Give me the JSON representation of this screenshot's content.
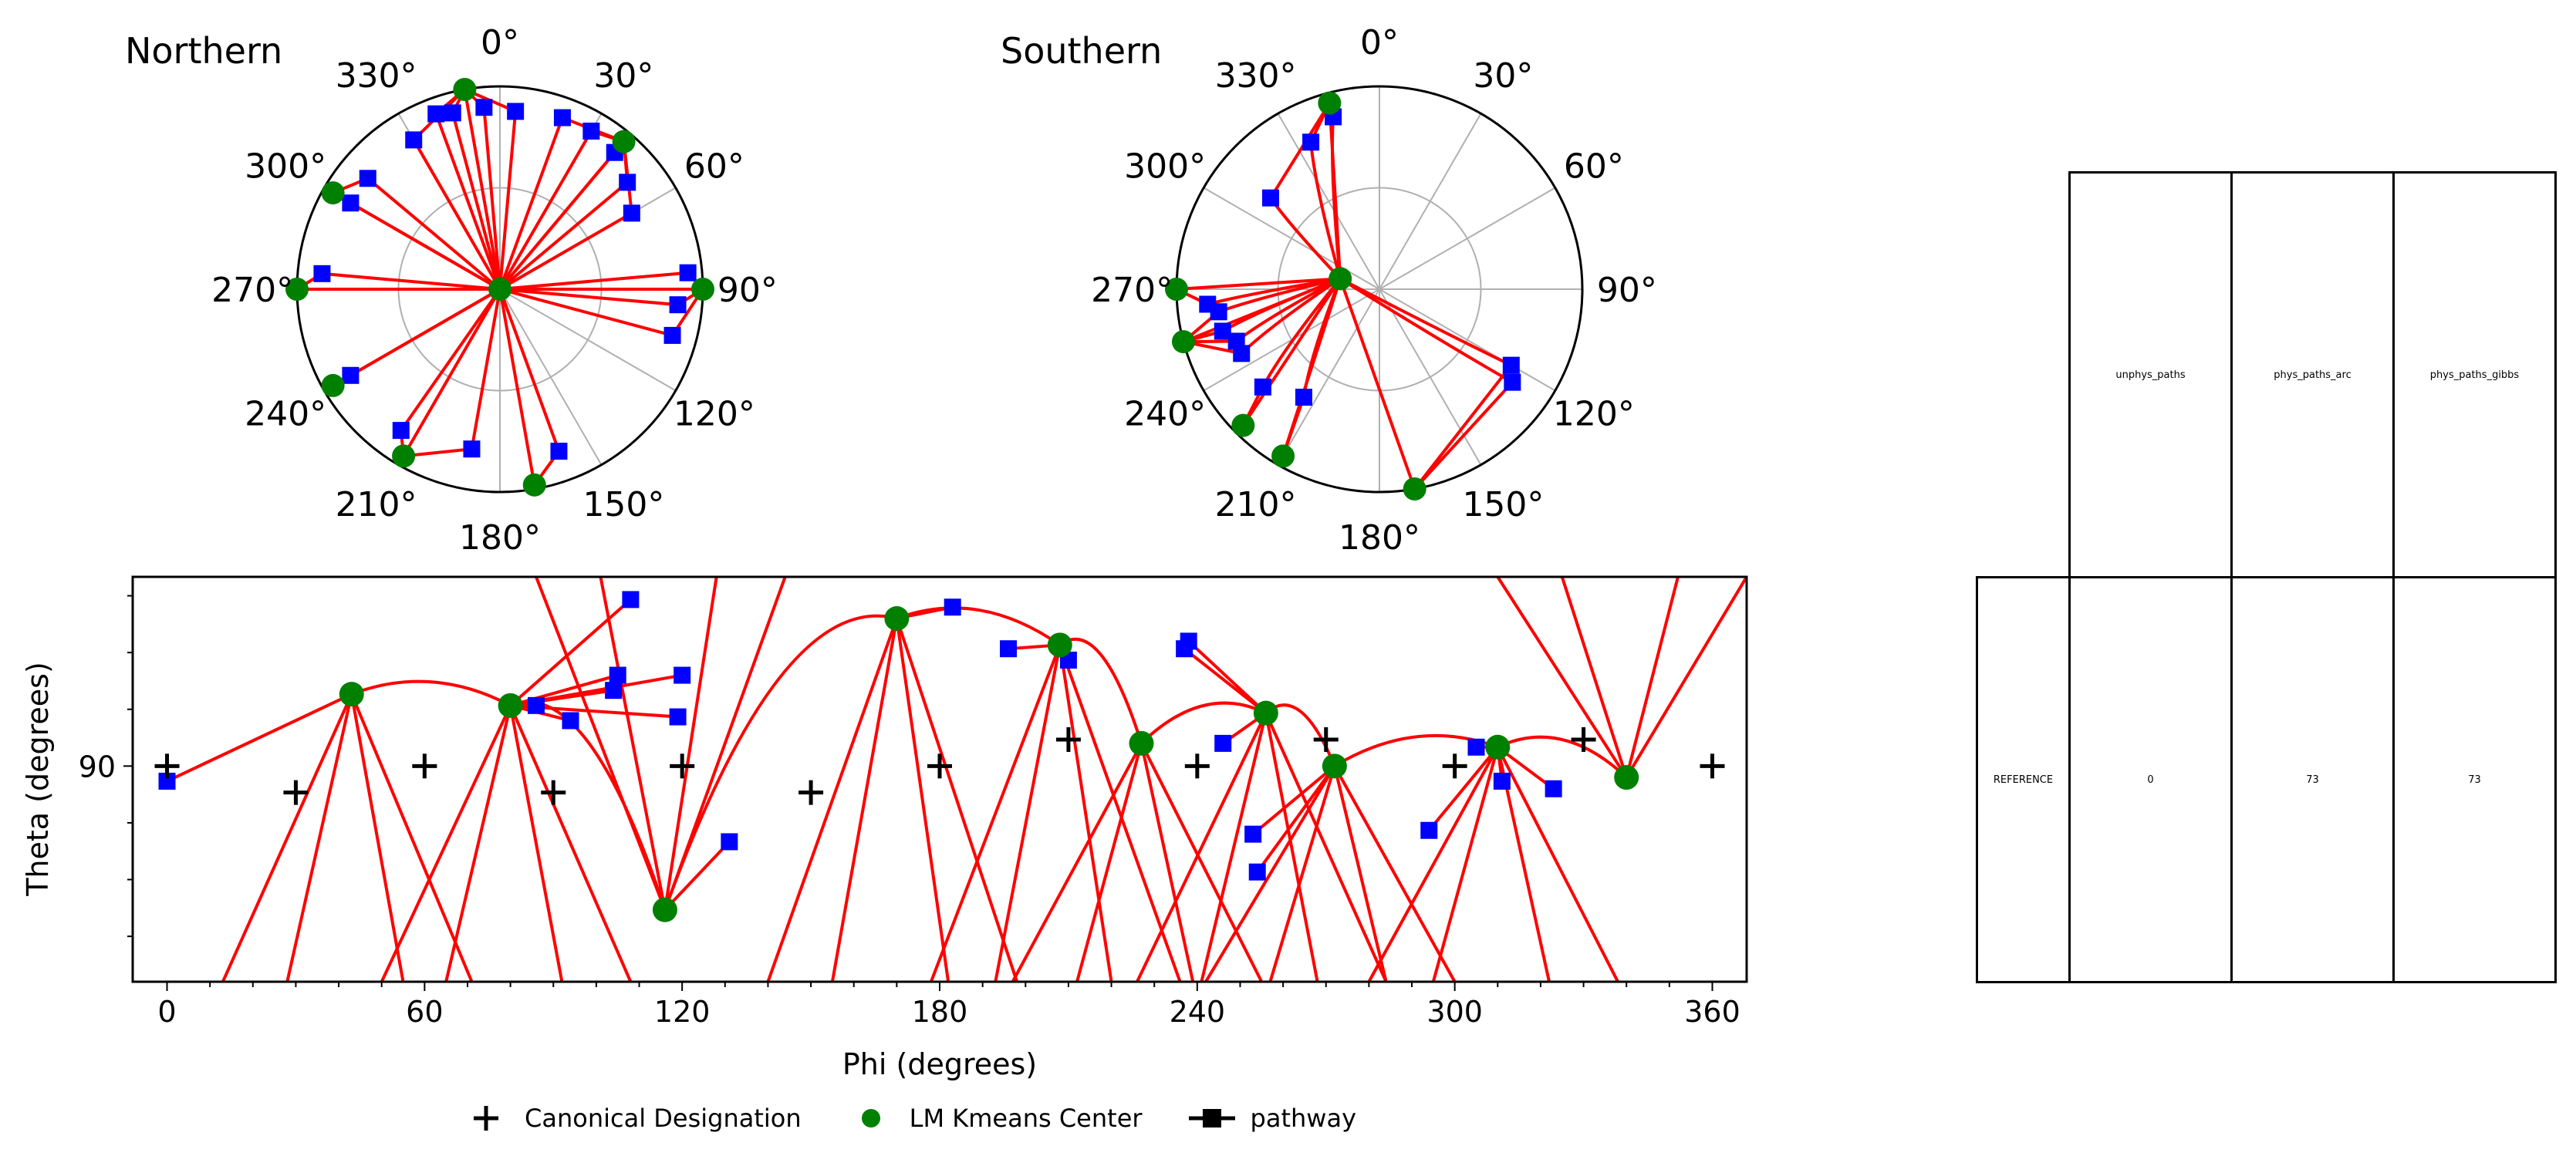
{
  "polar_northern": {
    "title": "Northern"
  },
  "polar_southern": {
    "title": "Southern"
  },
  "angle_ticks": [
    "0°",
    "30°",
    "60°",
    "90°",
    "120°",
    "150°",
    "180°",
    "210°",
    "240°",
    "270°",
    "300°",
    "330°"
  ],
  "legend": {
    "items": [
      {
        "label": "Canonical Designation",
        "marker": "plus",
        "color": "#000000"
      },
      {
        "label": "LM Kmeans Center",
        "marker": "circle",
        "color": "#008000"
      },
      {
        "label": "pathway",
        "marker": "square-line",
        "color": "#000000"
      }
    ]
  },
  "table": {
    "columns": [
      "unphys_paths",
      "phys_paths_arc",
      "phys_paths_gibbs"
    ],
    "rows": [
      {
        "label": "REFERENCE",
        "values": [
          "0",
          "73",
          "73"
        ]
      }
    ]
  },
  "colors": {
    "path": "#ff0000",
    "center": "#008000",
    "pathway_marker": "#0000ff",
    "canonical": "#000000"
  },
  "chart_data": [
    {
      "type": "scatter",
      "title": "Northern",
      "projection": "polar",
      "angle_ticks_deg": [
        0,
        30,
        60,
        90,
        120,
        150,
        180,
        210,
        240,
        270,
        300,
        330
      ],
      "centers": [
        {
          "phi": 0,
          "r": 0
        },
        {
          "phi": 90,
          "r": 1.0
        },
        {
          "phi": 270,
          "r": 1.0
        },
        {
          "phi": 300,
          "r": 0.95
        },
        {
          "phi": 240,
          "r": 0.95
        },
        {
          "phi": 210,
          "r": 0.95
        },
        {
          "phi": 170,
          "r": 0.98
        },
        {
          "phi": 40,
          "r": 0.95
        },
        {
          "phi": 350,
          "r": 1.0
        }
      ],
      "pathway_points": [
        {
          "phi": 345,
          "r": 0.9
        },
        {
          "phi": 340,
          "r": 0.92
        },
        {
          "phi": 355,
          "r": 0.9
        },
        {
          "phi": 5,
          "r": 0.88
        },
        {
          "phi": 20,
          "r": 0.9
        },
        {
          "phi": 30,
          "r": 0.9
        },
        {
          "phi": 40,
          "r": 0.88
        },
        {
          "phi": 50,
          "r": 0.82
        },
        {
          "phi": 60,
          "r": 0.75
        },
        {
          "phi": 85,
          "r": 0.93
        },
        {
          "phi": 95,
          "r": 0.88
        },
        {
          "phi": 105,
          "r": 0.88
        },
        {
          "phi": 160,
          "r": 0.85
        },
        {
          "phi": 190,
          "r": 0.8
        },
        {
          "phi": 215,
          "r": 0.85
        },
        {
          "phi": 240,
          "r": 0.85
        },
        {
          "phi": 275,
          "r": 0.88
        },
        {
          "phi": 300,
          "r": 0.85
        },
        {
          "phi": 310,
          "r": 0.85
        },
        {
          "phi": 330,
          "r": 0.85
        }
      ]
    },
    {
      "type": "scatter",
      "title": "Southern",
      "projection": "polar",
      "angle_ticks_deg": [
        0,
        30,
        60,
        90,
        120,
        150,
        180,
        210,
        240,
        270,
        300,
        330
      ],
      "centers": [
        {
          "phi": 285,
          "r": 0.2
        },
        {
          "phi": 270,
          "r": 1.0
        },
        {
          "phi": 255,
          "r": 1.0
        },
        {
          "phi": 225,
          "r": 0.95
        },
        {
          "phi": 210,
          "r": 0.95
        },
        {
          "phi": 170,
          "r": 1.0
        },
        {
          "phi": 345,
          "r": 0.95
        }
      ],
      "pathway_points": [
        {
          "phi": 345,
          "r": 0.88
        },
        {
          "phi": 335,
          "r": 0.8
        },
        {
          "phi": 310,
          "r": 0.7
        },
        {
          "phi": 265,
          "r": 0.85
        },
        {
          "phi": 262,
          "r": 0.8
        },
        {
          "phi": 255,
          "r": 0.8
        },
        {
          "phi": 250,
          "r": 0.75
        },
        {
          "phi": 245,
          "r": 0.75
        },
        {
          "phi": 230,
          "r": 0.75
        },
        {
          "phi": 215,
          "r": 0.65
        },
        {
          "phi": 125,
          "r": 0.8
        },
        {
          "phi": 120,
          "r": 0.75
        }
      ]
    },
    {
      "type": "scatter",
      "xlabel": "Phi (degrees)",
      "ylabel": "Theta (degrees)",
      "xlim": [
        -8,
        368
      ],
      "ylim": [
        33,
        140
      ],
      "xticks": [
        0,
        60,
        120,
        180,
        240,
        300,
        360
      ],
      "yticks": [
        90
      ],
      "canonical_designation": [
        {
          "x": 0,
          "y": 90
        },
        {
          "x": 30,
          "y": 83
        },
        {
          "x": 60,
          "y": 90
        },
        {
          "x": 90,
          "y": 83
        },
        {
          "x": 120,
          "y": 90
        },
        {
          "x": 150,
          "y": 83
        },
        {
          "x": 180,
          "y": 90
        },
        {
          "x": 210,
          "y": 97
        },
        {
          "x": 240,
          "y": 90
        },
        {
          "x": 270,
          "y": 97
        },
        {
          "x": 300,
          "y": 90
        },
        {
          "x": 330,
          "y": 97
        },
        {
          "x": 360,
          "y": 90
        }
      ],
      "lm_kmeans_center": [
        {
          "x": 43,
          "y": 109
        },
        {
          "x": 80,
          "y": 106
        },
        {
          "x": 116,
          "y": 52
        },
        {
          "x": 170,
          "y": 129
        },
        {
          "x": 208,
          "y": 122
        },
        {
          "x": 227,
          "y": 96
        },
        {
          "x": 256,
          "y": 104
        },
        {
          "x": 272,
          "y": 90
        },
        {
          "x": 310,
          "y": 95
        },
        {
          "x": 340,
          "y": 87
        }
      ],
      "pathway": [
        {
          "x": 0,
          "y": 86
        },
        {
          "x": 86,
          "y": 106
        },
        {
          "x": 94,
          "y": 102
        },
        {
          "x": 104,
          "y": 110
        },
        {
          "x": 105,
          "y": 114
        },
        {
          "x": 108,
          "y": 134
        },
        {
          "x": 119,
          "y": 103
        },
        {
          "x": 120,
          "y": 114
        },
        {
          "x": 131,
          "y": 70
        },
        {
          "x": 183,
          "y": 132
        },
        {
          "x": 196,
          "y": 121
        },
        {
          "x": 210,
          "y": 118
        },
        {
          "x": 237,
          "y": 121
        },
        {
          "x": 238,
          "y": 123
        },
        {
          "x": 246,
          "y": 96
        },
        {
          "x": 253,
          "y": 72
        },
        {
          "x": 254,
          "y": 62
        },
        {
          "x": 294,
          "y": 73
        },
        {
          "x": 305,
          "y": 95
        },
        {
          "x": 311,
          "y": 86
        },
        {
          "x": 323,
          "y": 84
        }
      ]
    }
  ]
}
